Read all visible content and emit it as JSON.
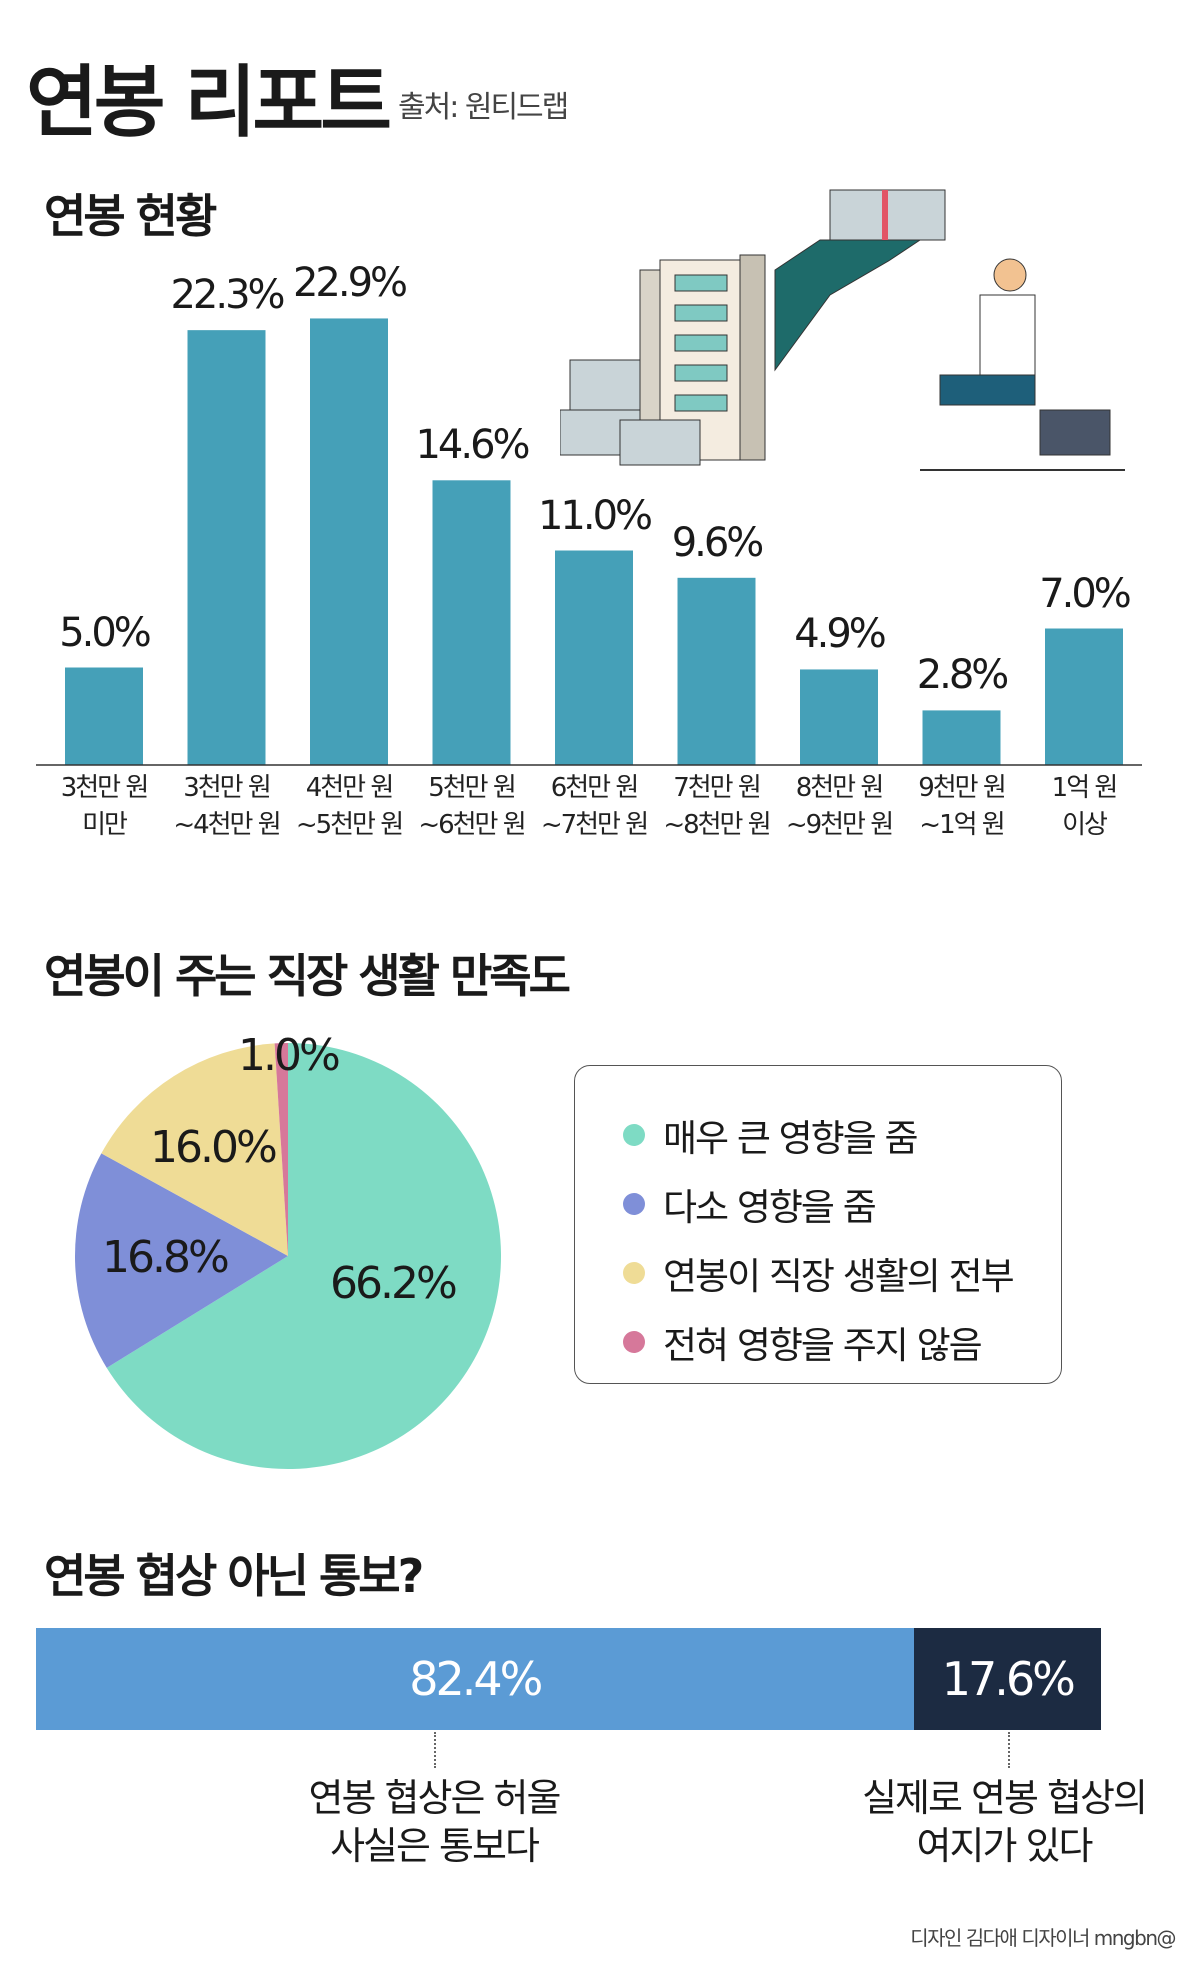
{
  "header": {
    "title": "연봉 리포트",
    "source": "출처: 원티드랩"
  },
  "chart_data": [
    {
      "type": "bar",
      "title": "연봉 현황",
      "categories": [
        [
          "3천만 원",
          "미만"
        ],
        [
          "3천만 원",
          "~4천만 원"
        ],
        [
          "4천만 원",
          "~5천만 원"
        ],
        [
          "5천만 원",
          "~6천만 원"
        ],
        [
          "6천만 원",
          "~7천만 원"
        ],
        [
          "7천만 원",
          "~8천만 원"
        ],
        [
          "8천만 원",
          "~9천만 원"
        ],
        [
          "9천만 원",
          "~1억 원"
        ],
        [
          "1억 원",
          "이상"
        ]
      ],
      "values": [
        5.0,
        22.3,
        22.9,
        14.6,
        11.0,
        9.6,
        4.9,
        2.8,
        7.0
      ],
      "labels": [
        "5.0%",
        "22.3%",
        "22.9%",
        "14.6%",
        "11.0%",
        "9.6%",
        "4.9%",
        "2.8%",
        "7.0%"
      ],
      "unit": "%",
      "color": "#45a0b8"
    },
    {
      "type": "pie",
      "title": "연봉이 주는 직장 생활 만족도",
      "slices": [
        {
          "name": "매우 큰 영향을 줌",
          "value": 66.2,
          "label": "66.2%",
          "color": "#7edbc4"
        },
        {
          "name": "다소 영향을 줌",
          "value": 16.8,
          "label": "16.8%",
          "color": "#7f8fd8"
        },
        {
          "name": "연봉이 직장 생활의 전부",
          "value": 16.0,
          "label": "16.0%",
          "color": "#efdc96"
        },
        {
          "name": "전혀 영향을 주지 않음",
          "value": 1.0,
          "label": "1.0%",
          "color": "#d6789a"
        }
      ],
      "legend": "right"
    },
    {
      "type": "bar",
      "orientation": "horizontal-stacked",
      "title": "연봉 협상 아닌 통보?",
      "segments": [
        {
          "value": 82.4,
          "label": "82.4%",
          "caption": [
            "연봉 협상은 허울",
            "사실은 통보다"
          ],
          "color": "#5b9bd5"
        },
        {
          "value": 17.6,
          "label": "17.6%",
          "caption": [
            "실제로 연봉 협상의",
            "여지가 있다"
          ],
          "color": "#1c2b42"
        }
      ]
    }
  ],
  "footer": "디자인 김다애 디자이너 mngbn@"
}
